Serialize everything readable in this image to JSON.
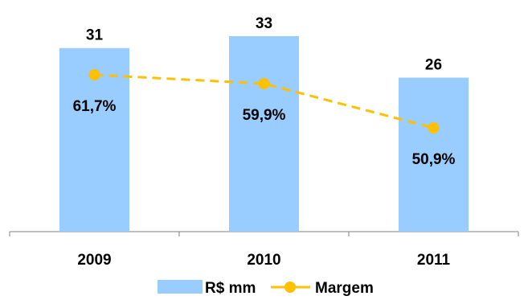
{
  "chart_data": {
    "type": "bar",
    "categories": [
      "2009",
      "2010",
      "2011"
    ],
    "series": [
      {
        "name": "R$ mm",
        "kind": "bar",
        "values": [
          31,
          33,
          26
        ],
        "labels": [
          "31",
          "33",
          "26"
        ],
        "color": "#99ccff"
      },
      {
        "name": "Margem",
        "kind": "line",
        "values": [
          61.7,
          59.9,
          50.9
        ],
        "labels": [
          "61,7%",
          "59,9%",
          "50,9%"
        ],
        "color": "#ffc000",
        "line_style": "dashed"
      }
    ],
    "bar_ylim": [
      0,
      35
    ],
    "line_ylim": [
      0,
      100
    ],
    "legend_position": "bottom",
    "grid": false
  }
}
